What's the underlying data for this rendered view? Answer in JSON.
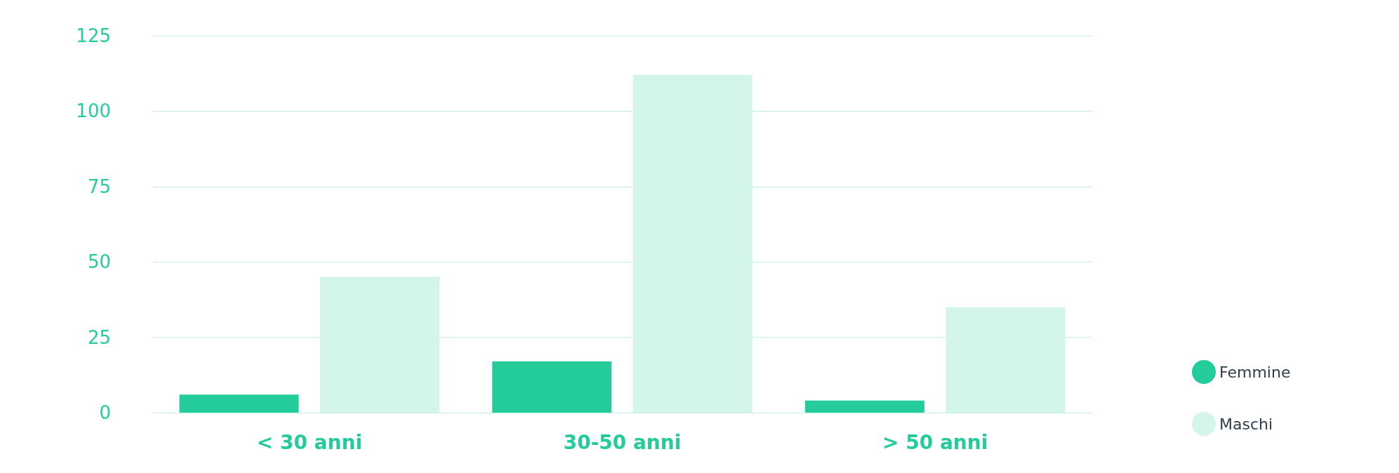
{
  "chart_data": {
    "type": "bar",
    "categories": [
      "< 30 anni",
      "30-50 anni",
      "> 50 anni"
    ],
    "series": [
      {
        "name": "Femmine",
        "color": "#24cc9b",
        "values": [
          6,
          17,
          4
        ]
      },
      {
        "name": "Maschi",
        "color": "#d3f5ea",
        "values": [
          45,
          112,
          35
        ]
      }
    ],
    "ylim": [
      0,
      125
    ],
    "yticks": [
      0,
      25,
      50,
      75,
      100,
      125
    ],
    "grid": "y",
    "legend": "bottom right",
    "marker": "circle"
  }
}
